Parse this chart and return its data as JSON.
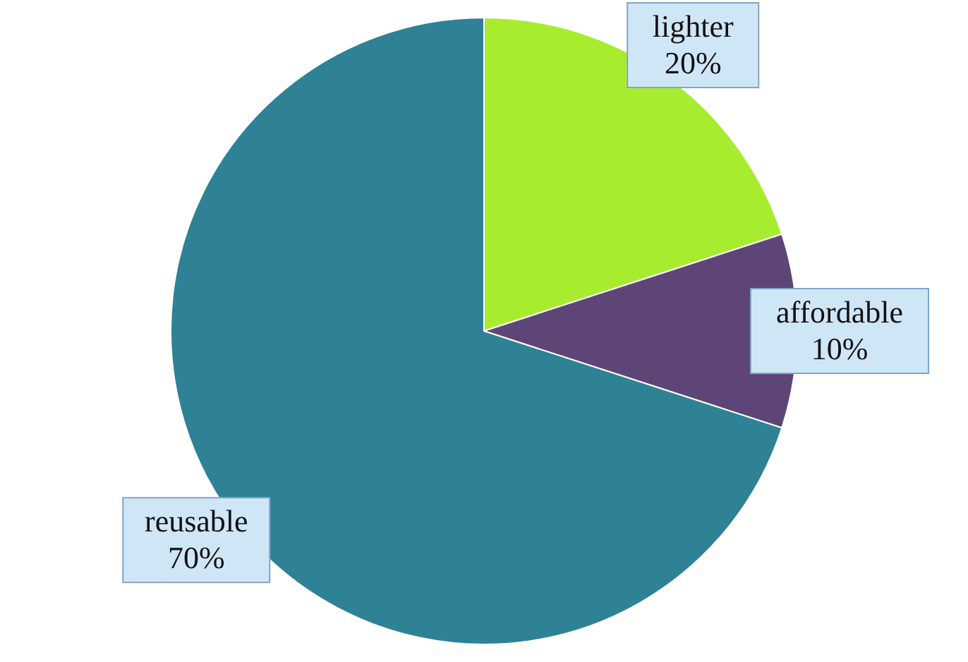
{
  "chart_data": {
    "type": "pie",
    "categories": [
      "lighter",
      "affordable",
      "reusable"
    ],
    "values": [
      20,
      10,
      70
    ],
    "colors": [
      "#a8ec30",
      "#5e4577",
      "#2f8196"
    ],
    "value_labels": [
      "20%",
      "10%",
      "70%"
    ]
  }
}
